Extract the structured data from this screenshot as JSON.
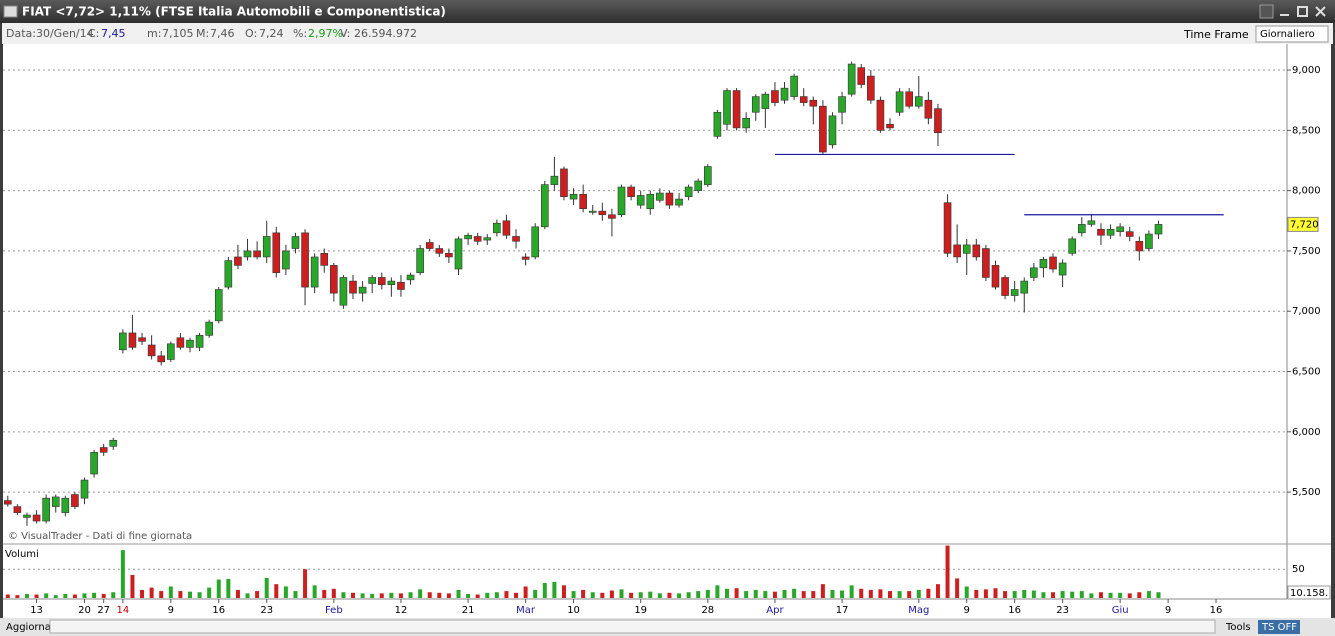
{
  "window": {
    "title": "FIAT <7,72> 1,11%  (FTSE Italia Automobili e Componentistica)"
  },
  "info": {
    "date": "Data:30/Gen/14",
    "c_label": "C:",
    "c": "7,45",
    "m_label": "m:",
    "m": "7,105",
    "M_label": "M:",
    "M": "7,46",
    "o_label": "O:",
    "o": "7,24",
    "pct_label": "%:",
    "pct": "2,97%",
    "v_label": "V:",
    "v": "26.594.972",
    "time_frame": "Time Frame",
    "time_frame_value": "Giornaliero"
  },
  "bottom": {
    "refresh": "Aggiorna",
    "tools": "Tools",
    "ts": "TS OFF"
  },
  "chart_data": {
    "type": "candlestick",
    "watermark": "© VisualTrader - Dati di fine giornata",
    "up_color": "#2aa62a",
    "down_color": "#cc1f1f",
    "grid": true,
    "open": [
      5.43,
      5.38,
      5.29,
      5.31,
      5.26,
      5.38,
      5.33,
      5.48,
      5.45,
      5.65,
      5.87,
      5.88,
      6.68,
      6.82,
      6.78,
      6.72,
      6.63,
      6.6,
      6.78,
      6.7,
      6.7,
      6.8,
      6.92,
      7.2,
      7.45,
      7.45,
      7.5,
      7.45,
      7.65,
      7.35,
      7.52,
      7.65,
      7.2,
      7.48,
      7.38,
      7.05,
      7.25,
      7.15,
      7.23,
      7.28,
      7.22,
      7.24,
      7.26,
      7.32,
      7.57,
      7.52,
      7.48,
      7.35,
      7.6,
      7.62,
      7.59,
      7.65,
      7.75,
      7.62,
      7.45,
      7.45,
      7.7,
      8.05,
      8.18,
      7.93,
      7.97,
      7.82,
      7.83,
      7.8,
      7.8,
      8.03,
      7.88,
      7.85,
      7.92,
      7.98,
      7.88,
      7.95,
      8.0,
      8.05,
      8.45,
      8.55,
      8.83,
      8.52,
      8.65,
      8.68,
      8.83,
      8.75,
      8.78,
      8.78,
      8.75,
      8.7,
      8.38,
      8.65,
      8.8,
      9.02,
      8.95,
      8.75,
      8.55,
      8.65,
      8.82,
      8.7,
      8.75,
      8.68,
      7.9,
      7.55,
      7.48,
      7.55,
      7.52,
      7.38,
      7.28,
      7.13,
      7.15,
      7.28,
      7.36,
      7.45,
      7.3,
      7.48,
      7.65,
      7.72,
      7.68,
      7.63,
      7.66,
      7.66,
      7.58,
      7.52,
      7.64
    ],
    "high": [
      5.47,
      5.4,
      5.33,
      5.35,
      5.48,
      5.48,
      5.47,
      5.5,
      5.62,
      5.85,
      5.9,
      5.95,
      6.85,
      6.97,
      6.82,
      6.8,
      6.67,
      6.75,
      6.82,
      6.78,
      6.82,
      6.93,
      7.2,
      7.45,
      7.55,
      7.6,
      7.58,
      7.75,
      7.7,
      7.55,
      7.65,
      7.68,
      7.48,
      7.52,
      7.4,
      7.3,
      7.3,
      7.25,
      7.3,
      7.32,
      7.28,
      7.3,
      7.32,
      7.55,
      7.6,
      7.55,
      7.52,
      7.62,
      7.65,
      7.65,
      7.64,
      7.76,
      7.8,
      7.68,
      7.48,
      7.73,
      8.08,
      8.28,
      8.2,
      8.02,
      8.05,
      7.88,
      7.9,
      7.85,
      8.05,
      8.05,
      8.0,
      8.0,
      8.02,
      8.0,
      7.98,
      8.05,
      8.1,
      8.22,
      8.67,
      8.85,
      8.85,
      8.65,
      8.8,
      8.82,
      8.9,
      8.9,
      8.97,
      8.85,
      8.78,
      8.75,
      8.65,
      8.82,
      9.07,
      9.05,
      9.0,
      8.78,
      8.6,
      8.85,
      8.85,
      8.95,
      8.82,
      8.72,
      7.97,
      7.72,
      7.6,
      7.6,
      7.55,
      7.42,
      7.3,
      7.25,
      7.28,
      7.4,
      7.45,
      7.48,
      7.43,
      7.62,
      7.78,
      7.8,
      7.73,
      7.72,
      7.73,
      7.7,
      7.62,
      7.67,
      7.75
    ],
    "low": [
      5.38,
      5.31,
      5.22,
      5.24,
      5.24,
      5.33,
      5.3,
      5.36,
      5.4,
      5.62,
      5.8,
      5.85,
      6.65,
      6.68,
      6.72,
      6.6,
      6.55,
      6.58,
      6.68,
      6.66,
      6.67,
      6.78,
      6.9,
      7.18,
      7.35,
      7.42,
      7.43,
      7.4,
      7.28,
      7.3,
      7.48,
      7.05,
      7.15,
      7.32,
      7.08,
      7.02,
      7.1,
      7.08,
      7.15,
      7.18,
      7.12,
      7.12,
      7.22,
      7.3,
      7.5,
      7.45,
      7.4,
      7.3,
      7.55,
      7.55,
      7.55,
      7.62,
      7.6,
      7.52,
      7.38,
      7.43,
      7.68,
      8.0,
      7.92,
      7.88,
      7.82,
      7.8,
      7.75,
      7.62,
      7.78,
      7.92,
      7.85,
      7.8,
      7.9,
      7.85,
      7.86,
      7.92,
      7.98,
      8.03,
      8.43,
      8.5,
      8.5,
      8.48,
      8.58,
      8.52,
      8.7,
      8.72,
      8.75,
      8.7,
      8.55,
      8.3,
      8.35,
      8.55,
      8.78,
      8.85,
      8.72,
      8.48,
      8.5,
      8.62,
      8.68,
      8.68,
      8.55,
      8.37,
      7.45,
      7.4,
      7.3,
      7.42,
      7.25,
      7.18,
      7.1,
      7.08,
      6.99,
      7.25,
      7.28,
      7.32,
      7.2,
      7.46,
      7.62,
      7.7,
      7.55,
      7.6,
      7.62,
      7.58,
      7.42,
      7.5,
      7.6
    ],
    "close": [
      5.4,
      5.33,
      5.31,
      5.26,
      5.45,
      5.46,
      5.45,
      5.38,
      5.6,
      5.83,
      5.83,
      5.93,
      6.82,
      6.7,
      6.75,
      6.63,
      6.58,
      6.73,
      6.7,
      6.76,
      6.8,
      6.91,
      7.18,
      7.42,
      7.38,
      7.5,
      7.45,
      7.62,
      7.32,
      7.5,
      7.62,
      7.2,
      7.45,
      7.38,
      7.15,
      7.28,
      7.15,
      7.2,
      7.28,
      7.22,
      7.25,
      7.18,
      7.3,
      7.52,
      7.52,
      7.48,
      7.45,
      7.6,
      7.63,
      7.58,
      7.61,
      7.73,
      7.63,
      7.58,
      7.43,
      7.7,
      8.05,
      8.12,
      7.95,
      7.97,
      7.85,
      7.83,
      7.8,
      7.77,
      8.03,
      7.95,
      7.96,
      7.97,
      7.98,
      7.88,
      7.93,
      8.03,
      8.08,
      8.2,
      8.65,
      8.83,
      8.52,
      8.6,
      8.78,
      8.8,
      8.73,
      8.85,
      8.95,
      8.73,
      8.7,
      8.32,
      8.62,
      8.78,
      9.05,
      8.88,
      8.75,
      8.5,
      8.52,
      8.82,
      8.7,
      8.78,
      8.6,
      8.48,
      7.48,
      7.45,
      7.55,
      7.45,
      7.28,
      7.2,
      7.13,
      7.18,
      7.25,
      7.36,
      7.43,
      7.35,
      7.4,
      7.6,
      7.72,
      7.75,
      7.63,
      7.68,
      7.7,
      7.62,
      7.5,
      7.64,
      7.72
    ],
    "xlim": [
      -0.5,
      133.4
    ],
    "xticks": [
      {
        "value": 3,
        "label": "13"
      },
      {
        "value": 8,
        "label": "20"
      },
      {
        "value": 10,
        "label": "27"
      },
      {
        "value": 12,
        "label": "14",
        "color": "#cc0000"
      },
      {
        "value": 17,
        "label": "9"
      },
      {
        "value": 22,
        "label": "16"
      },
      {
        "value": 27,
        "label": "23"
      },
      {
        "value": 34,
        "label": "Feb",
        "color": "#1a1a9a"
      },
      {
        "value": 41,
        "label": "12"
      },
      {
        "value": 48,
        "label": "21"
      },
      {
        "value": 54,
        "label": "Mar",
        "color": "#1a1a9a"
      },
      {
        "value": 59,
        "label": "10"
      },
      {
        "value": 66,
        "label": "19"
      },
      {
        "value": 73,
        "label": "28"
      },
      {
        "value": 80,
        "label": "Apr",
        "color": "#1a1a9a"
      },
      {
        "value": 87,
        "label": "17"
      },
      {
        "value": 95,
        "label": "Mag",
        "color": "#1a1a9a"
      },
      {
        "value": 100,
        "label": "9"
      },
      {
        "value": 105,
        "label": "16"
      },
      {
        "value": 110,
        "label": "23"
      },
      {
        "value": 116,
        "label": "Giu",
        "color": "#1a1a9a"
      },
      {
        "value": 121,
        "label": "9"
      },
      {
        "value": 126,
        "label": "16"
      }
    ],
    "ylim": [
      5.078,
      9.216
    ],
    "yticks": [
      {
        "value": 5.5,
        "label": "5,500"
      },
      {
        "value": 6,
        "label": "6,000"
      },
      {
        "value": 6.5,
        "label": "6,500"
      },
      {
        "value": 7,
        "label": "7,000"
      },
      {
        "value": 7.5,
        "label": "7,500"
      },
      {
        "value": 8,
        "label": "8,000"
      },
      {
        "value": 8.5,
        "label": "8,500"
      },
      {
        "value": 9,
        "label": "9,000"
      }
    ],
    "hline_color": "#1a1a9a",
    "hlines": [
      {
        "value": 8.3,
        "from": 80,
        "to": 105
      },
      {
        "value": 7.8,
        "from": 106,
        "to": 126.8
      }
    ],
    "last_price": {
      "value": 7.72,
      "label": "7,720"
    },
    "volume": {
      "title": "Volumi",
      "label": "10.158.",
      "ylim": [
        0,
        92
      ],
      "yticks": [
        50
      ],
      "values": [
        6,
        5,
        7,
        6,
        8,
        5,
        7,
        6,
        8,
        9,
        7,
        10,
        83,
        40,
        14,
        18,
        12,
        20,
        12,
        11,
        10,
        18,
        32,
        33,
        14,
        8,
        12,
        35,
        24,
        20,
        12,
        50,
        22,
        14,
        16,
        10,
        9,
        8,
        7,
        8,
        9,
        8,
        10,
        15,
        10,
        9,
        8,
        14,
        7,
        6,
        9,
        10,
        12,
        9,
        20,
        14,
        26,
        28,
        22,
        12,
        14,
        10,
        9,
        13,
        15,
        9,
        10,
        11,
        8,
        9,
        8,
        10,
        12,
        14,
        22,
        16,
        17,
        12,
        14,
        12,
        11,
        14,
        16,
        12,
        12,
        24,
        14,
        13,
        22,
        16,
        14,
        15,
        12,
        12,
        12,
        14,
        16,
        24,
        91,
        34,
        20,
        14,
        15,
        17,
        12,
        12,
        14,
        13,
        10,
        10,
        12,
        11,
        12,
        8,
        10,
        9,
        9,
        8,
        10,
        12,
        10
      ]
    }
  }
}
